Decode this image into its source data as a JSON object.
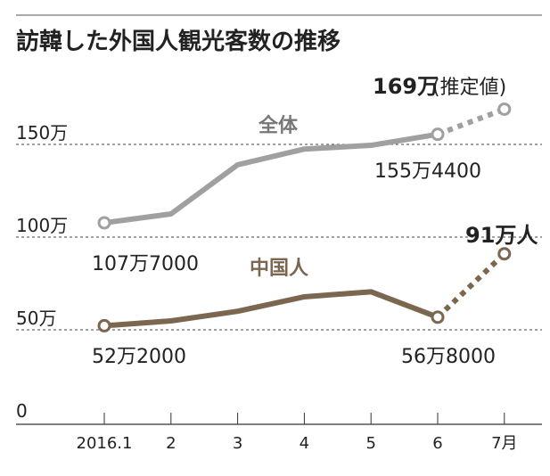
{
  "chart_data": {
    "type": "line",
    "title": "訪韓した外国人観光客数の推移",
    "categories": [
      "2016.1",
      "2",
      "3",
      "4",
      "5",
      "6",
      "7月"
    ],
    "ylim": [
      0,
      170
    ],
    "yticks": [
      {
        "value": 0,
        "label": "0"
      },
      {
        "value": 50,
        "label": "50万"
      },
      {
        "value": 100,
        "label": "100万"
      },
      {
        "value": 150,
        "label": "150万"
      }
    ],
    "unit": "万人",
    "series": [
      {
        "name": "全体",
        "color": "#a0a0a2",
        "values": [
          107.7,
          112.5,
          139,
          147.5,
          149.5,
          155.44,
          169
        ],
        "estimated_last": true
      },
      {
        "name": "中国人",
        "color": "#7b6650",
        "values": [
          52.2,
          54.8,
          60,
          67.8,
          70.5,
          56.8,
          91
        ],
        "estimated_last": true
      }
    ],
    "annotations": {
      "total_first": "107万7000",
      "total_june": "155万4400",
      "total_july_value": "169万",
      "total_july_note": "(推定値)",
      "china_first": "52万2000",
      "china_june": "56万8000",
      "china_july": "91万人"
    }
  }
}
